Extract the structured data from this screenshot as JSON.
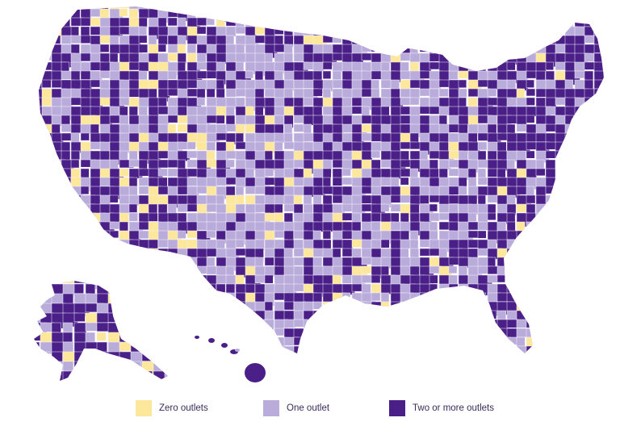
{
  "colors": {
    "zero": "#fde79a",
    "one": "#b9acdb",
    "two_plus": "#4b1f88",
    "border": "#f3f0fa"
  },
  "legend": [
    {
      "key": "zero",
      "label": "Zero outlets"
    },
    {
      "key": "one",
      "label": "One outlet"
    },
    {
      "key": "two_plus",
      "label": "Two or more outlets"
    }
  ]
}
